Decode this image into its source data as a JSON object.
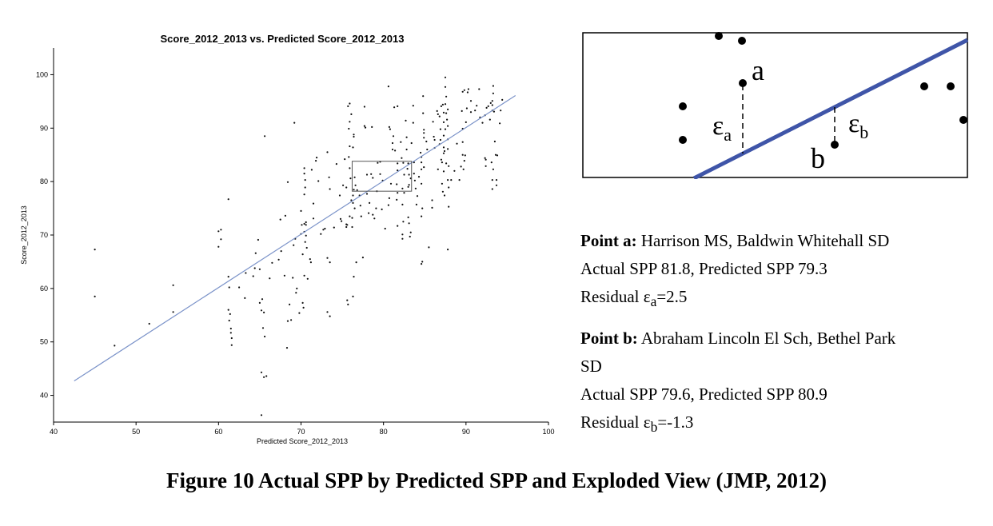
{
  "chart_data": {
    "type": "scatter",
    "title": "Score_2012_2013 vs. Predicted Score_2012_2013",
    "xlabel": "Predicted Score_2012_2013",
    "ylabel": "Score_2012_2013",
    "xlim": [
      40,
      100
    ],
    "ylim": [
      35,
      105
    ],
    "x_ticks": [
      "40",
      "50",
      "60",
      "70",
      "80",
      "90",
      "100"
    ],
    "y_ticks": [
      "40",
      "50",
      "60",
      "70",
      "80",
      "90",
      "100"
    ],
    "grid": false,
    "fit_line": {
      "x": [
        42.5,
        96
      ],
      "y": [
        42.7,
        96.1
      ]
    },
    "highlight_box": {
      "x": [
        76.2,
        83.4
      ],
      "y": [
        78.2,
        83.8
      ]
    },
    "points": [
      [
        45.0,
        58.5
      ],
      [
        45.0,
        67.3
      ],
      [
        47.4,
        49.3
      ],
      [
        51.6,
        53.4
      ],
      [
        54.5,
        55.6
      ],
      [
        54.5,
        60.6
      ],
      [
        60.0,
        70.7
      ],
      [
        60.3,
        71.0
      ],
      [
        60.3,
        69.2
      ],
      [
        60.0,
        67.8
      ],
      [
        61.2,
        76.7
      ],
      [
        61.2,
        62.2
      ],
      [
        61.3,
        60.2
      ],
      [
        61.2,
        56.0
      ],
      [
        61.4,
        55.2
      ],
      [
        61.3,
        54.0
      ],
      [
        61.5,
        52.5
      ],
      [
        61.5,
        51.7
      ],
      [
        61.6,
        50.7
      ],
      [
        61.6,
        49.4
      ],
      [
        62.5,
        60.2
      ],
      [
        63.2,
        58.2
      ],
      [
        63.3,
        62.9
      ],
      [
        64.2,
        62.3
      ],
      [
        64.4,
        63.8
      ],
      [
        64.5,
        66.6
      ],
      [
        64.8,
        69.1
      ],
      [
        65.0,
        63.6
      ],
      [
        65.0,
        57.3
      ],
      [
        65.2,
        55.9
      ],
      [
        65.3,
        58.0
      ],
      [
        65.5,
        55.5
      ],
      [
        65.4,
        52.6
      ],
      [
        65.6,
        51.0
      ],
      [
        65.2,
        44.3
      ],
      [
        65.5,
        43.4
      ],
      [
        65.8,
        43.6
      ],
      [
        65.2,
        36.3
      ],
      [
        65.6,
        88.5
      ],
      [
        66.2,
        61.9
      ],
      [
        66.5,
        64.8
      ],
      [
        67.3,
        65.4
      ],
      [
        67.6,
        67.0
      ],
      [
        67.5,
        72.9
      ],
      [
        68.1,
        73.6
      ],
      [
        68.4,
        79.9
      ],
      [
        68.0,
        62.4
      ],
      [
        68.6,
        57.0
      ],
      [
        68.4,
        53.9
      ],
      [
        68.3,
        48.9
      ],
      [
        68.8,
        54.1
      ],
      [
        69.2,
        91.0
      ],
      [
        69.1,
        68.1
      ],
      [
        69.3,
        69.3
      ],
      [
        69.0,
        62.0
      ],
      [
        69.5,
        60.0
      ],
      [
        69.4,
        59.2
      ],
      [
        69.8,
        55.4
      ],
      [
        70.0,
        74.5
      ],
      [
        70.1,
        71.9
      ],
      [
        70.0,
        70.2
      ],
      [
        70.2,
        66.4
      ],
      [
        70.2,
        57.3
      ],
      [
        70.3,
        56.4
      ],
      [
        70.4,
        82.5
      ],
      [
        70.4,
        81.5
      ],
      [
        70.5,
        80.3
      ],
      [
        70.5,
        78.9
      ],
      [
        70.4,
        77.6
      ],
      [
        70.4,
        72.1
      ],
      [
        70.6,
        72.4
      ],
      [
        70.6,
        71.9
      ],
      [
        70.4,
        70.6
      ],
      [
        70.6,
        69.9
      ],
      [
        70.5,
        68.7
      ],
      [
        70.4,
        62.4
      ],
      [
        70.7,
        67.6
      ],
      [
        70.8,
        61.8
      ],
      [
        71.1,
        65.5
      ],
      [
        71.2,
        64.9
      ],
      [
        71.3,
        82.2
      ],
      [
        71.5,
        75.9
      ],
      [
        71.5,
        73.1
      ],
      [
        71.8,
        83.9
      ],
      [
        71.9,
        84.5
      ],
      [
        72.1,
        80.1
      ],
      [
        72.4,
        70.2
      ],
      [
        72.7,
        71.0
      ],
      [
        72.9,
        71.2
      ],
      [
        73.2,
        85.5
      ],
      [
        73.4,
        80.8
      ],
      [
        73.5,
        78.6
      ],
      [
        73.2,
        65.7
      ],
      [
        73.5,
        64.9
      ],
      [
        73.2,
        55.6
      ],
      [
        73.5,
        54.8
      ],
      [
        74.0,
        71.4
      ],
      [
        74.3,
        83.3
      ],
      [
        74.7,
        77.4
      ],
      [
        74.8,
        73.0
      ],
      [
        74.9,
        72.6
      ],
      [
        75.1,
        79.3
      ],
      [
        75.3,
        84.2
      ],
      [
        75.5,
        78.9
      ],
      [
        75.5,
        71.5
      ],
      [
        75.5,
        72.0
      ],
      [
        75.8,
        89.9
      ],
      [
        75.7,
        94.1
      ],
      [
        75.9,
        94.6
      ],
      [
        76.1,
        92.6
      ],
      [
        75.9,
        91.2
      ],
      [
        75.9,
        86.6
      ],
      [
        75.8,
        84.6
      ],
      [
        75.9,
        82.5
      ],
      [
        76.0,
        80.6
      ],
      [
        76.1,
        76.5
      ],
      [
        75.9,
        73.5
      ],
      [
        75.6,
        71.9
      ],
      [
        76.2,
        71.5
      ],
      [
        75.6,
        57.8
      ],
      [
        75.7,
        57.0
      ],
      [
        76.3,
        86.4
      ],
      [
        76.4,
        88.4
      ],
      [
        76.4,
        88.8
      ],
      [
        76.5,
        80.8
      ],
      [
        76.6,
        79.3
      ],
      [
        76.4,
        78.5
      ],
      [
        76.3,
        77.4
      ],
      [
        76.3,
        76.0
      ],
      [
        76.5,
        75.0
      ],
      [
        76.2,
        73.2
      ],
      [
        76.3,
        58.5
      ],
      [
        76.4,
        62.2
      ],
      [
        76.7,
        64.9
      ],
      [
        76.8,
        78.4
      ],
      [
        77.1,
        77.4
      ],
      [
        77.2,
        75.5
      ],
      [
        77.3,
        73.5
      ],
      [
        77.5,
        65.8
      ],
      [
        77.7,
        94.0
      ],
      [
        77.7,
        90.4
      ],
      [
        77.8,
        90.1
      ],
      [
        78.0,
        81.3
      ],
      [
        78.0,
        77.7
      ],
      [
        78.2,
        74.1
      ],
      [
        78.3,
        76.0
      ],
      [
        78.5,
        81.4
      ],
      [
        78.6,
        90.2
      ],
      [
        78.7,
        80.7
      ],
      [
        78.7,
        73.8
      ],
      [
        78.9,
        73.1
      ],
      [
        79.1,
        75.0
      ],
      [
        79.2,
        78.2
      ],
      [
        79.3,
        83.5
      ],
      [
        79.6,
        81.4
      ],
      [
        79.6,
        83.7
      ],
      [
        79.9,
        80.2
      ],
      [
        79.8,
        74.8
      ],
      [
        80.2,
        71.2
      ],
      [
        80.6,
        75.6
      ],
      [
        80.7,
        76.9
      ],
      [
        80.9,
        79.6
      ],
      [
        80.6,
        97.8
      ],
      [
        80.7,
        90.2
      ],
      [
        80.8,
        89.8
      ],
      [
        81.1,
        87.2
      ],
      [
        81.1,
        86.0
      ],
      [
        81.4,
        85.8
      ],
      [
        81.2,
        88.5
      ],
      [
        81.3,
        93.9
      ],
      [
        81.7,
        94.1
      ],
      [
        81.7,
        83.4
      ],
      [
        81.6,
        79.5
      ],
      [
        81.7,
        82.1
      ],
      [
        81.7,
        77.9
      ],
      [
        81.6,
        76.6
      ],
      [
        81.7,
        71.7
      ],
      [
        82.1,
        87.4
      ],
      [
        82.2,
        84.4
      ],
      [
        82.4,
        83.5
      ],
      [
        82.5,
        81.3
      ],
      [
        82.3,
        78.7
      ],
      [
        82.5,
        77.9
      ],
      [
        82.3,
        75.7
      ],
      [
        82.4,
        72.5
      ],
      [
        82.3,
        70.1
      ],
      [
        82.3,
        69.3
      ],
      [
        82.7,
        91.4
      ],
      [
        82.8,
        88.3
      ],
      [
        82.8,
        86.0
      ],
      [
        83.0,
        83.4
      ],
      [
        82.9,
        82.4
      ],
      [
        83.1,
        81.3
      ],
      [
        83.3,
        80.6
      ],
      [
        83.1,
        79.4
      ],
      [
        83.0,
        79.0
      ],
      [
        83.0,
        73.3
      ],
      [
        83.1,
        72.2
      ],
      [
        83.3,
        70.5
      ],
      [
        83.2,
        69.7
      ],
      [
        83.6,
        91.0
      ],
      [
        83.6,
        94.2
      ],
      [
        83.4,
        87.2
      ],
      [
        83.7,
        83.6
      ],
      [
        83.7,
        81.5
      ],
      [
        83.8,
        80.2
      ],
      [
        83.9,
        78.7
      ],
      [
        84.1,
        77.3
      ],
      [
        84.0,
        75.7
      ],
      [
        84.3,
        80.9
      ],
      [
        84.5,
        85.4
      ],
      [
        84.6,
        84.6
      ],
      [
        84.6,
        83.6
      ],
      [
        84.6,
        82.3
      ],
      [
        84.6,
        79.6
      ],
      [
        84.7,
        75.0
      ],
      [
        84.6,
        73.5
      ],
      [
        84.7,
        65.0
      ],
      [
        84.6,
        64.6
      ],
      [
        84.8,
        92.8
      ],
      [
        84.8,
        96.0
      ],
      [
        84.9,
        89.7
      ],
      [
        84.9,
        89.1
      ],
      [
        84.9,
        88.2
      ],
      [
        84.9,
        82.7
      ],
      [
        85.2,
        87.5
      ],
      [
        85.3,
        86.0
      ],
      [
        85.5,
        67.7
      ],
      [
        85.9,
        76.5
      ],
      [
        85.9,
        75.1
      ],
      [
        86.1,
        88.4
      ],
      [
        86.2,
        87.8
      ],
      [
        86.2,
        86.3
      ],
      [
        86.0,
        91.2
      ],
      [
        86.5,
        93.2
      ],
      [
        86.6,
        92.6
      ],
      [
        86.8,
        92.2
      ],
      [
        86.6,
        82.3
      ],
      [
        86.9,
        89.8
      ],
      [
        86.9,
        87.8
      ],
      [
        86.8,
        87.0
      ],
      [
        87.0,
        84.1
      ],
      [
        87.1,
        83.6
      ],
      [
        87.3,
        92.9
      ],
      [
        87.0,
        94.1
      ],
      [
        87.2,
        94.4
      ],
      [
        87.3,
        91.1
      ],
      [
        87.3,
        88.6
      ],
      [
        87.3,
        86.4
      ],
      [
        87.3,
        85.3
      ],
      [
        87.3,
        81.9
      ],
      [
        87.1,
        79.6
      ],
      [
        87.2,
        78.1
      ],
      [
        87.4,
        77.4
      ],
      [
        87.4,
        85.7
      ],
      [
        87.5,
        99.5
      ],
      [
        87.5,
        97.7
      ],
      [
        87.6,
        95.9
      ],
      [
        87.5,
        94.5
      ],
      [
        87.8,
        93.5
      ],
      [
        87.6,
        92.8
      ],
      [
        87.7,
        91.6
      ],
      [
        87.8,
        90.4
      ],
      [
        87.5,
        89.8
      ],
      [
        87.8,
        87.9
      ],
      [
        87.8,
        86.1
      ],
      [
        87.6,
        83.4
      ],
      [
        87.9,
        82.9
      ],
      [
        87.8,
        80.3
      ],
      [
        87.9,
        78.9
      ],
      [
        87.9,
        75.3
      ],
      [
        87.8,
        67.3
      ],
      [
        88.2,
        80.3
      ],
      [
        88.6,
        82.0
      ],
      [
        88.9,
        87.1
      ],
      [
        89.2,
        80.3
      ],
      [
        89.4,
        82.8
      ],
      [
        89.6,
        85.0
      ],
      [
        89.6,
        89.9
      ],
      [
        89.5,
        93.2
      ],
      [
        89.6,
        96.8
      ],
      [
        89.8,
        97.1
      ],
      [
        89.6,
        87.4
      ],
      [
        89.8,
        83.9
      ],
      [
        89.7,
        82.3
      ],
      [
        89.9,
        84.9
      ],
      [
        90.0,
        91.1
      ],
      [
        90.1,
        93.7
      ],
      [
        90.2,
        96.7
      ],
      [
        90.3,
        97.3
      ],
      [
        90.6,
        95.1
      ],
      [
        90.6,
        93.0
      ],
      [
        91.1,
        93.3
      ],
      [
        91.3,
        94.2
      ],
      [
        91.6,
        97.3
      ],
      [
        91.7,
        92.0
      ],
      [
        92.0,
        91.0
      ],
      [
        92.3,
        84.4
      ],
      [
        92.4,
        82.9
      ],
      [
        92.4,
        84.1
      ],
      [
        92.3,
        92.4
      ],
      [
        92.5,
        93.8
      ],
      [
        92.7,
        94.1
      ],
      [
        92.9,
        91.6
      ],
      [
        93.0,
        94.7
      ],
      [
        93.2,
        94.3
      ],
      [
        93.2,
        95.1
      ],
      [
        93.3,
        96.5
      ],
      [
        93.3,
        97.9
      ],
      [
        93.2,
        93.3
      ],
      [
        93.4,
        93.1
      ],
      [
        93.1,
        83.6
      ],
      [
        93.3,
        82.3
      ],
      [
        93.2,
        80.3
      ],
      [
        93.2,
        78.6
      ],
      [
        93.7,
        80.3
      ],
      [
        93.7,
        79.3
      ],
      [
        93.8,
        84.9
      ],
      [
        94.1,
        90.9
      ],
      [
        94.2,
        93.3
      ],
      [
        94.4,
        95.3
      ],
      [
        93.5,
        87.5
      ],
      [
        93.6,
        85.0
      ]
    ]
  },
  "inset": {
    "label_a": "a",
    "label_b": "b",
    "eps": "ε",
    "sub_a": "a",
    "sub_b": "b"
  },
  "notes": {
    "point_a_title": "Point a:",
    "point_a_name": " Harrison MS, Baldwin Whitehall SD",
    "point_a_values": "Actual SPP 81.8, Predicted SPP 79.3",
    "point_a_res_prefix": "Residual ε",
    "point_a_res_sub": "a",
    "point_a_res_value": "=2.5",
    "point_b_title": "Point b:",
    "point_b_name": " Abraham Lincoln El Sch, Bethel Park",
    "point_b_name_cont": "SD",
    "point_b_values": "Actual SPP 79.6, Predicted SPP 80.9",
    "point_b_res_prefix": "Residual ε",
    "point_b_res_sub": "b",
    "point_b_res_value": "=-1.3"
  },
  "caption": "Figure 10 Actual SPP by Predicted SPP and Exploded View (JMP, 2012)",
  "colors": {
    "fit_line": "#7b93c9",
    "inset_line": "#3f55a8",
    "points": "#111111"
  }
}
